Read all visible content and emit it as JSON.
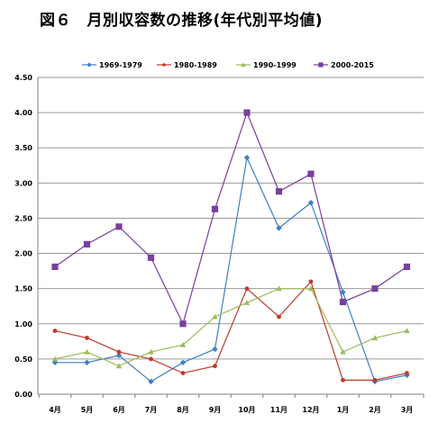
{
  "chart_data": {
    "type": "line",
    "title": "図６　月別収容数の推移(年代別平均値)",
    "categories": [
      "4月",
      "5月",
      "6月",
      "7月",
      "8月",
      "9月",
      "10月",
      "11月",
      "12月",
      "1月",
      "2月",
      "3月"
    ],
    "ylim": [
      0,
      4.5
    ],
    "yticks": [
      "0.00",
      "0.50",
      "1.00",
      "1.50",
      "2.00",
      "2.50",
      "3.00",
      "3.50",
      "4.00",
      "4.50"
    ],
    "grid": true,
    "legend_position": "top",
    "series": [
      {
        "name": "1969-1979",
        "color": "#3d7fc4",
        "marker": "diamond",
        "values": [
          0.45,
          0.45,
          0.55,
          0.18,
          0.45,
          0.64,
          3.36,
          2.36,
          2.72,
          1.45,
          0.18,
          0.27
        ]
      },
      {
        "name": "1980-1989",
        "color": "#c0392b",
        "marker": "circle",
        "values": [
          0.9,
          0.8,
          0.6,
          0.5,
          0.3,
          0.4,
          1.5,
          1.1,
          1.6,
          0.2,
          0.2,
          0.3
        ]
      },
      {
        "name": "1990-1999",
        "color": "#9bbb59",
        "marker": "triangle",
        "values": [
          0.5,
          0.6,
          0.4,
          0.6,
          0.7,
          1.1,
          1.3,
          1.5,
          1.5,
          0.6,
          0.8,
          0.9
        ]
      },
      {
        "name": "2000-2015",
        "color": "#7b3f9e",
        "marker": "square",
        "values": [
          1.81,
          2.13,
          2.38,
          1.94,
          1.0,
          2.63,
          4.0,
          2.88,
          3.13,
          1.31,
          1.5,
          1.81
        ]
      }
    ]
  }
}
